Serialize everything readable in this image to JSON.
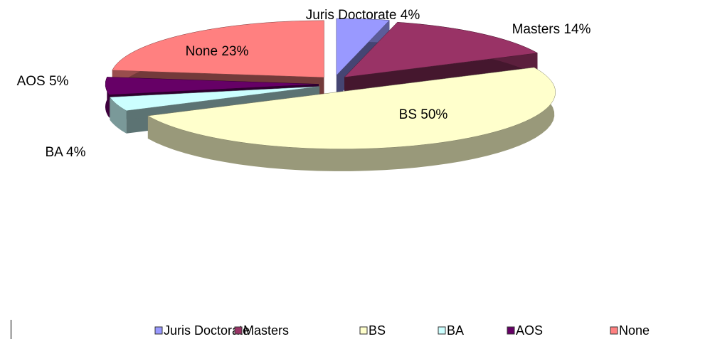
{
  "chart_data": {
    "type": "pie3d",
    "categories": [
      "Juris Doctorate",
      "Masters",
      "BS",
      "BA",
      "AOS",
      "None"
    ],
    "values": [
      4,
      14,
      50,
      4,
      5,
      23
    ],
    "value_labels": [
      "Juris Doctorate 4%",
      "Masters 14%",
      "BS 50%",
      "BA 4%",
      "AOS 5%",
      "None 23%"
    ],
    "colors": [
      "#9999ff",
      "#993366",
      "#ffffcc",
      "#ccffff",
      "#660066",
      "#ff8080"
    ],
    "legend": "bottom"
  }
}
